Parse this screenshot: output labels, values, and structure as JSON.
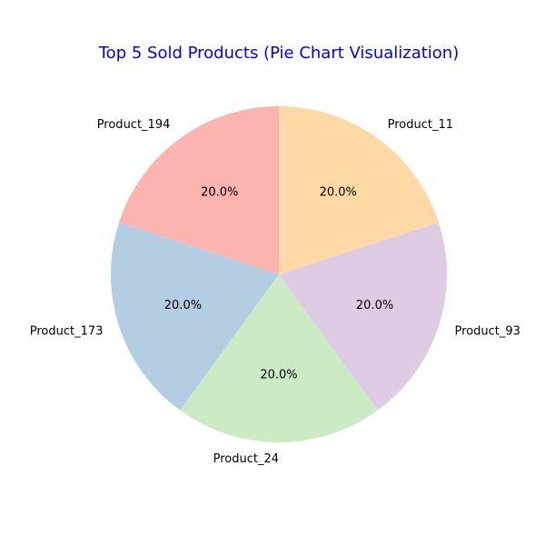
{
  "chart_data": {
    "type": "pie",
    "title": "Top 5 Sold Products (Pie Chart Visualization)",
    "title_color": "#0000ff",
    "start_angle_deg": 90,
    "direction": "counterclockwise",
    "slices": [
      {
        "label": "Product_194",
        "value": 20.0,
        "pct_label": "20.0%",
        "color": "#fbb4ae"
      },
      {
        "label": "Product_173",
        "value": 20.0,
        "pct_label": "20.0%",
        "color": "#b3cde3"
      },
      {
        "label": "Product_24",
        "value": 20.0,
        "pct_label": "20.0%",
        "color": "#ccebc5"
      },
      {
        "label": "Product_93",
        "value": 20.0,
        "pct_label": "20.0%",
        "color": "#decbe4"
      },
      {
        "label": "Product_11",
        "value": 20.0,
        "pct_label": "20.0%",
        "color": "#fed9a6"
      }
    ]
  }
}
